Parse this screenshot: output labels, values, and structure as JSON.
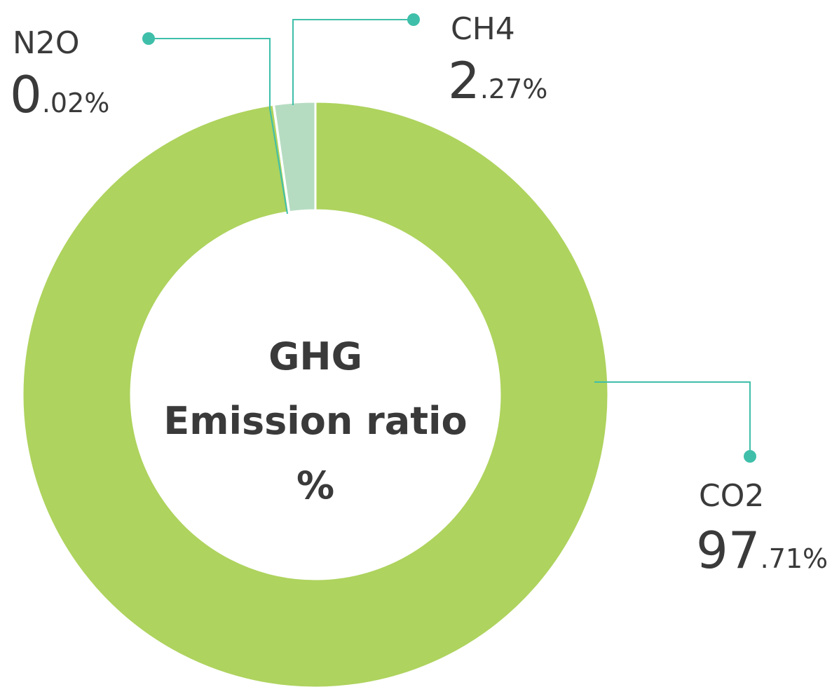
{
  "chart_data": {
    "type": "donut",
    "center_label": [
      "GHG",
      "Emission ratio",
      "%"
    ],
    "categories": [
      "CO2",
      "N2O",
      "CH4"
    ],
    "values": [
      97.71,
      0.02,
      2.27
    ],
    "value_labels": [
      "97.71%",
      "0.02%",
      "2.27%"
    ],
    "colors": [
      "#aed35e",
      "#8fcfbf",
      "#b5dcc1"
    ],
    "leader_color": "#3fbfaa"
  }
}
